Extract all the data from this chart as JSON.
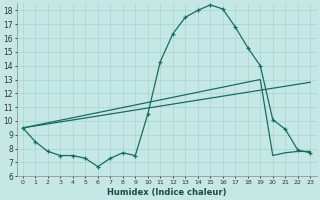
{
  "xlabel": "Humidex (Indice chaleur)",
  "xlim": [
    -0.5,
    23.5
  ],
  "ylim": [
    6,
    18.5
  ],
  "yticks": [
    6,
    7,
    8,
    9,
    10,
    11,
    12,
    13,
    14,
    15,
    16,
    17,
    18
  ],
  "xticks": [
    0,
    1,
    2,
    3,
    4,
    5,
    6,
    7,
    8,
    9,
    10,
    11,
    12,
    13,
    14,
    15,
    16,
    17,
    18,
    19,
    20,
    21,
    22,
    23
  ],
  "bg_color": "#c5e8e5",
  "grid_color": "#a8d4d0",
  "line_color": "#1a6b65",
  "line1_x": [
    0,
    1,
    2,
    3,
    4,
    5,
    6,
    7,
    8,
    9,
    10,
    11,
    12,
    13,
    14,
    15,
    16,
    17,
    18,
    19,
    20,
    21,
    22,
    23
  ],
  "line1_y": [
    9.5,
    8.5,
    7.8,
    7.5,
    7.5,
    7.3,
    6.7,
    7.3,
    7.7,
    7.5,
    10.5,
    14.3,
    16.3,
    17.5,
    18.0,
    18.4,
    18.1,
    16.8,
    15.3,
    14.0,
    10.1,
    9.4,
    7.9,
    7.7
  ],
  "line2_x": [
    0,
    23
  ],
  "line2_y": [
    9.5,
    12.8
  ],
  "line3_x": [
    0,
    19,
    20,
    21,
    22,
    23
  ],
  "line3_y": [
    9.5,
    13.0,
    7.5,
    7.7,
    7.8,
    7.8
  ]
}
